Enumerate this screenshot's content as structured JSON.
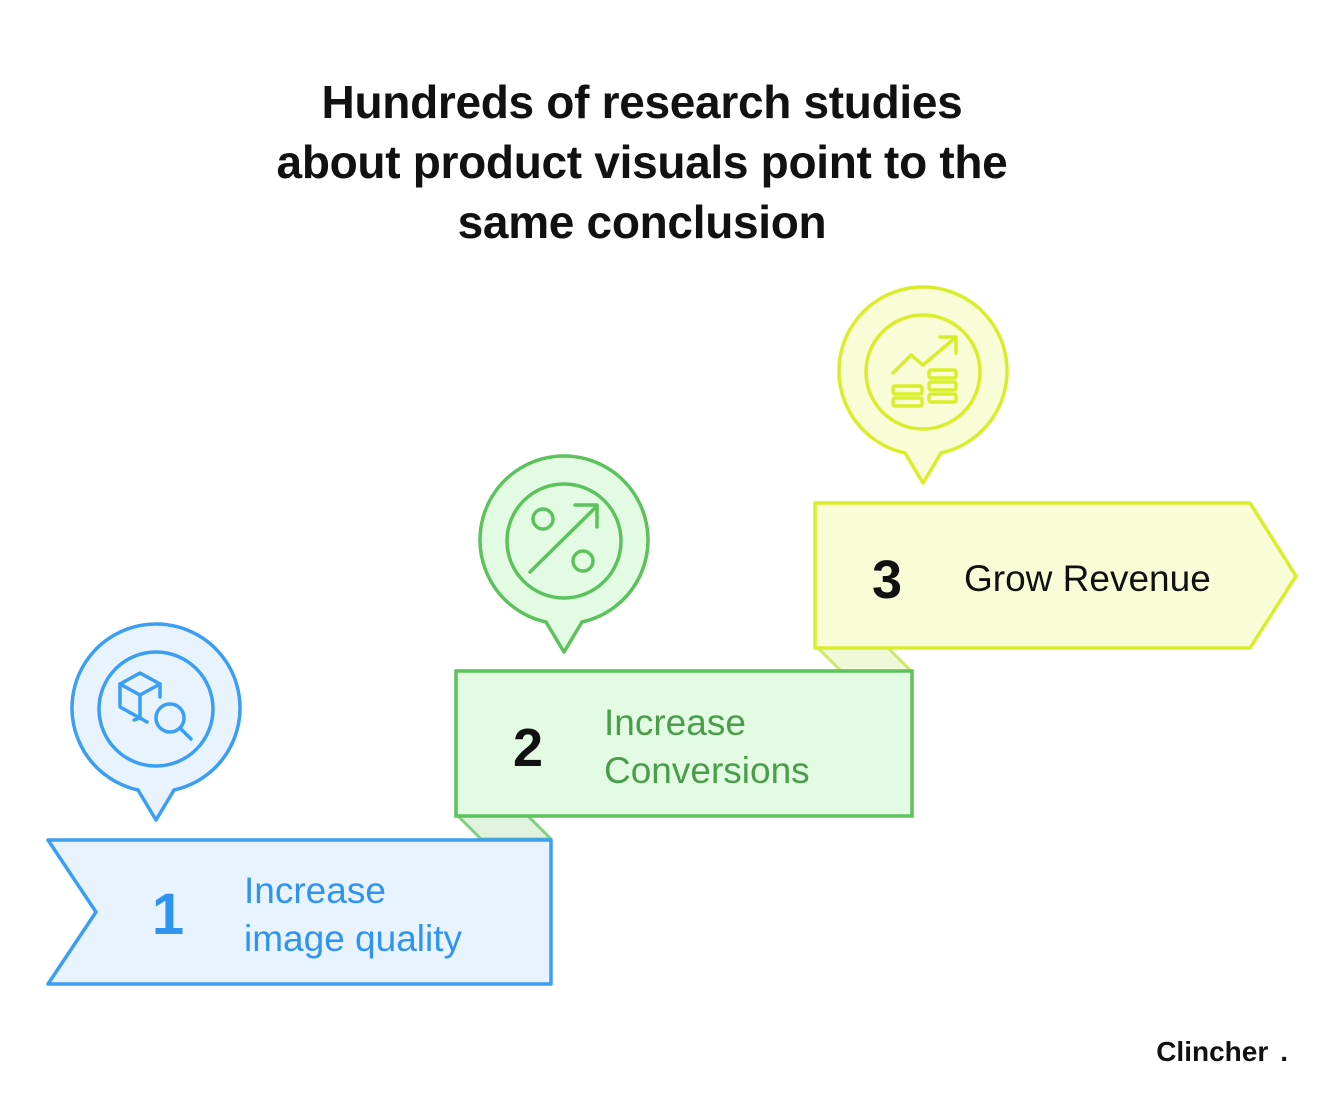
{
  "title": {
    "line1": "Hundreds of research studies",
    "line2": "about product visuals point to the",
    "line3": "same conclusion"
  },
  "steps": [
    {
      "number": "1",
      "label_line1": "Increase",
      "label_line2": "image quality",
      "icon": "box-search-icon",
      "stroke": "#3b9ef5",
      "fill": "#e8f3fd",
      "text_color": "#2f94f0"
    },
    {
      "number": "2",
      "label_line1": "Increase",
      "label_line2": "Conversions",
      "icon": "percent-up-icon",
      "stroke": "#5cc25c",
      "fill": "#e3fae3",
      "text_color": "#4a9e4a"
    },
    {
      "number": "3",
      "label_line1": "Grow Revenue",
      "icon": "coins-growth-icon",
      "stroke": "#d9ee2a",
      "fill": "#f8fdd8",
      "text_color": "#111111"
    }
  ],
  "brand": {
    "name": "Clincher",
    "dot": "."
  }
}
